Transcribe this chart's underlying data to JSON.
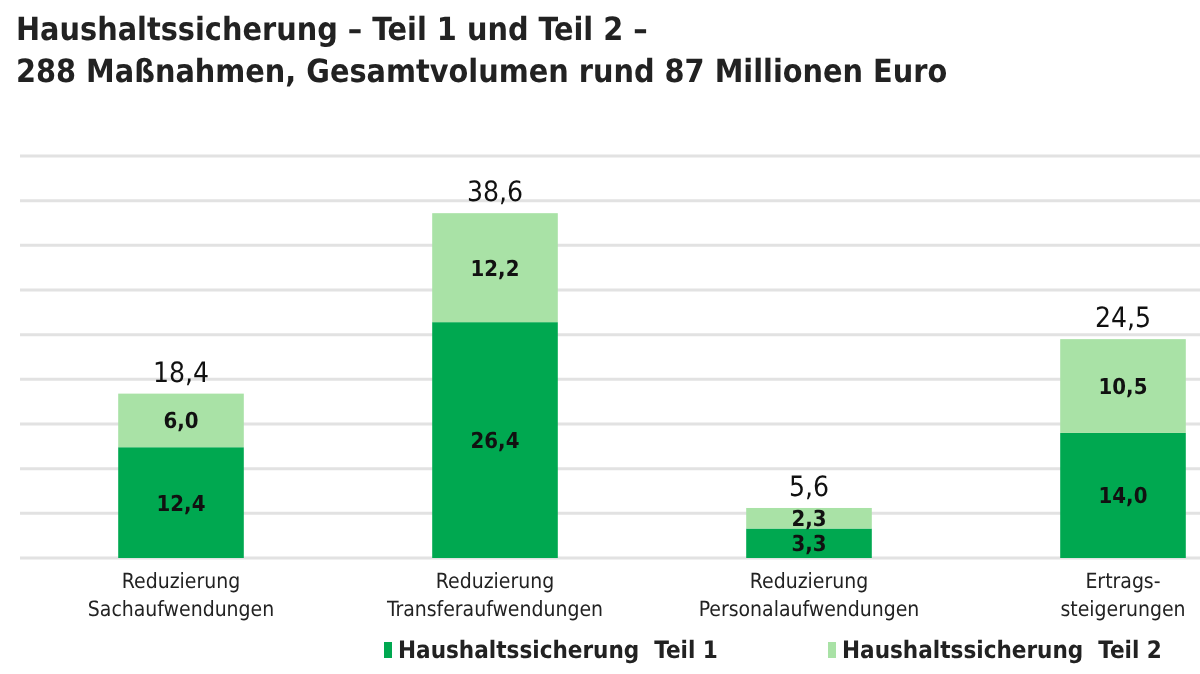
{
  "chart_data": {
    "type": "bar",
    "title": "Haushaltssicherung – Teil 1 und Teil 2 –\n288 Maßnahmen, Gesamtvolumen rund 87 Millionen Euro",
    "categories": [
      "Reduzierung\nSachaufwendungen",
      "Reduzierung\nTransferaufwendungen",
      "Reduzierung\nPersonalaufwendungen",
      "Ertrags-\nsteigerungen"
    ],
    "series": [
      {
        "name": "Haushaltssicherung  Teil 1",
        "color": "#00a850",
        "values": [
          12.4,
          26.4,
          3.3,
          14.0
        ],
        "value_labels": [
          "12,4",
          "26,4",
          "3,3",
          "14,0"
        ]
      },
      {
        "name": "Haushaltssicherung  Teil 2",
        "color": "#a9e2a6",
        "values": [
          6.0,
          12.2,
          2.3,
          10.5
        ],
        "value_labels": [
          "6,0",
          "12,2",
          "2,3",
          "10,5"
        ]
      }
    ],
    "totals": [
      "18,4",
      "38,6",
      "5,6",
      "24,5"
    ],
    "stacked": true,
    "ylim": [
      0,
      45
    ],
    "yticks": [
      {
        "value": 0,
        "label": null
      },
      {
        "value": 5,
        "label": null
      },
      {
        "value": 10,
        "label": null
      },
      {
        "value": 15,
        "label": null
      },
      {
        "value": 20,
        "label": null
      },
      {
        "value": 25,
        "label": null
      },
      {
        "value": 30,
        "label": null
      },
      {
        "value": 35,
        "label": null
      },
      {
        "value": 40,
        "label": null
      },
      {
        "value": 45,
        "label": null
      }
    ],
    "grid": true,
    "tick_labels": "x",
    "legend": "bottom"
  }
}
